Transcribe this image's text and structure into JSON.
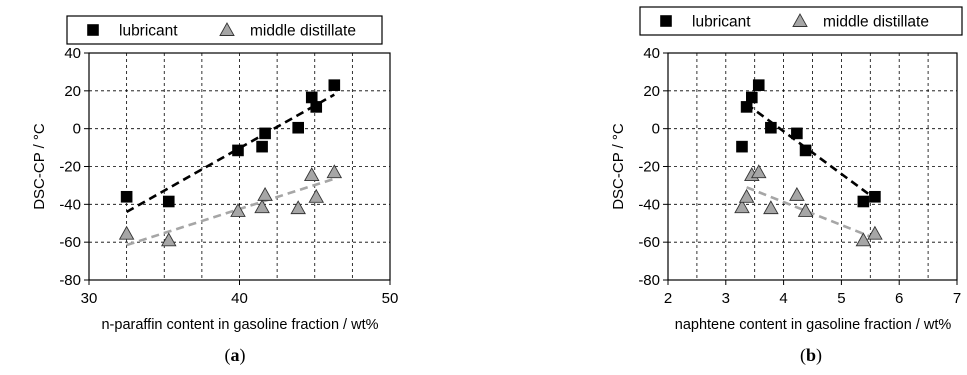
{
  "chart_data": [
    {
      "type": "scatter",
      "panel_label": "(a)",
      "panel_letter": "a",
      "xlabel": "n-paraffin content in gasoline fraction / wt%",
      "ylabel": "DSC-CP / °C",
      "xlim": [
        30,
        50
      ],
      "ylim": [
        -80,
        40
      ],
      "xticks": [
        30,
        40,
        50
      ],
      "yticks": [
        -80,
        -60,
        -40,
        -20,
        0,
        20,
        40
      ],
      "x_gridlines": [
        30,
        32.5,
        35,
        37.5,
        40,
        42.5,
        45,
        47.5,
        50
      ],
      "grid": true,
      "legend": {
        "placement": "top",
        "entries": [
          "lubricant",
          "middle distillate"
        ]
      },
      "series": [
        {
          "name": "lubricant",
          "marker": "square",
          "color": "#000000",
          "x": [
            32.5,
            35.3,
            39.9,
            41.5,
            41.7,
            43.9,
            44.8,
            45.1,
            46.3
          ],
          "y": [
            -36,
            -38.5,
            -11.5,
            -9.5,
            -2.5,
            0.5,
            16.5,
            11.5,
            23
          ],
          "trend": {
            "style": "dashed",
            "x": [
              32.5,
              46.3
            ],
            "y": [
              -44,
              18
            ]
          }
        },
        {
          "name": "middle distillate",
          "marker": "triangle",
          "color": "#a6a6a6",
          "x": [
            32.5,
            35.3,
            39.9,
            41.5,
            41.7,
            43.9,
            44.8,
            45.1,
            46.3
          ],
          "y": [
            -55.5,
            -59,
            -43.5,
            -41.5,
            -35,
            -42,
            -24.5,
            -36,
            -23
          ],
          "trend": {
            "style": "dashed",
            "x": [
              32.5,
              46.3
            ],
            "y": [
              -61.5,
              -26.5
            ]
          }
        }
      ]
    },
    {
      "type": "scatter",
      "panel_label": "(b)",
      "panel_letter": "b",
      "xlabel": "naphtene content in gasoline fraction / wt%",
      "ylabel": "DSC-CP / °C",
      "xlim": [
        2,
        7
      ],
      "ylim": [
        -80,
        40
      ],
      "xticks": [
        2,
        3,
        4,
        5,
        6,
        7
      ],
      "yticks": [
        -80,
        -60,
        -40,
        -20,
        0,
        20,
        40
      ],
      "x_gridlines": [
        2,
        2.5,
        3,
        3.5,
        4,
        4.5,
        5,
        5.5,
        6,
        6.5,
        7
      ],
      "grid": true,
      "legend": {
        "placement": "top",
        "entries": [
          "lubricant",
          "middle distillate"
        ]
      },
      "series": [
        {
          "name": "lubricant",
          "marker": "square",
          "color": "#000000",
          "x": [
            3.28,
            3.36,
            3.45,
            3.57,
            3.78,
            4.23,
            4.38,
            5.38,
            5.58
          ],
          "y": [
            -9.5,
            11.5,
            16.5,
            23,
            0.5,
            -2.5,
            -11.5,
            -38.5,
            -36
          ],
          "trend": {
            "style": "dashed",
            "x": [
              3.36,
              5.58
            ],
            "y": [
              13,
              -37
            ]
          }
        },
        {
          "name": "middle distillate",
          "marker": "triangle",
          "color": "#a6a6a6",
          "x": [
            3.28,
            3.36,
            3.45,
            3.57,
            3.78,
            4.23,
            4.38,
            5.38,
            5.58
          ],
          "y": [
            -41.5,
            -36,
            -24.5,
            -23,
            -42,
            -35,
            -43.5,
            -59,
            -55.5
          ],
          "trend": {
            "style": "dashed",
            "x": [
              3.36,
              5.58
            ],
            "y": [
              -31,
              -58
            ]
          }
        }
      ]
    }
  ]
}
